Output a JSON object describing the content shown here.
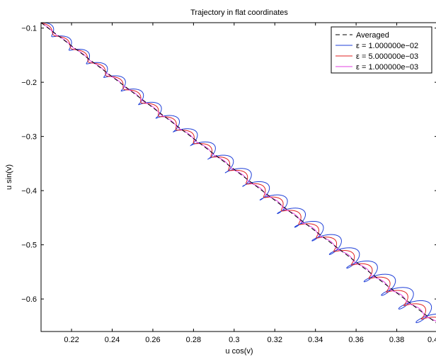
{
  "chart_data": {
    "type": "line",
    "title": "Trajectory in flat coordinates",
    "xlabel": "u cos(v)",
    "ylabel": "u sin(v)",
    "xlim": [
      0.205,
      0.4
    ],
    "ylim": [
      -0.66,
      -0.09
    ],
    "xticks": [
      0.22,
      0.24,
      0.26,
      0.28,
      0.3,
      0.32,
      0.34,
      0.36,
      0.38
    ],
    "xtick_labels": [
      "0.22",
      "0.24",
      "0.26",
      "0.28",
      "0.3",
      "0.32",
      "0.34",
      "0.36",
      "0.38"
    ],
    "yticks": [
      -0.1,
      -0.2,
      -0.3,
      -0.4,
      -0.5,
      -0.6
    ],
    "ytick_labels": [
      "−0.1",
      "−0.2",
      "−0.3",
      "−0.4",
      "−0.5",
      "−0.6"
    ],
    "x_edge_label": "0.4",
    "grid": false,
    "legend_position": "top-right",
    "series": [
      {
        "name": "Averaged",
        "color": "#000000",
        "style": "dashed",
        "eps": 0
      },
      {
        "name": "ε = 1.000000e−02",
        "color": "#1f3fd8",
        "style": "solid",
        "eps": 0.01
      },
      {
        "name": "ε = 5.000000e−03",
        "color": "#e02020",
        "style": "solid",
        "eps": 0.005
      },
      {
        "name": "ε = 1.000000e−03",
        "color": "#e040e0",
        "style": "solid",
        "eps": 0.001
      }
    ]
  }
}
